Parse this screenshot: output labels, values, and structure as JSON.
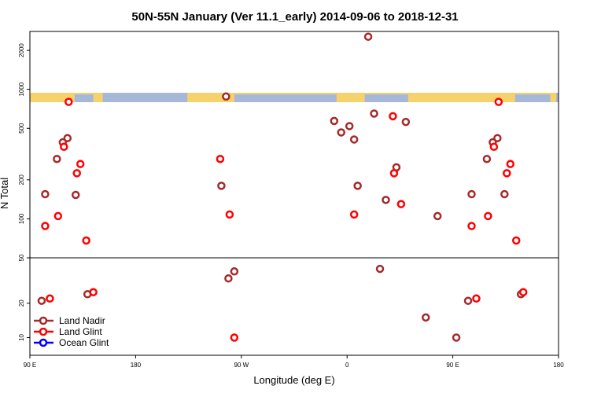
{
  "chart_data": {
    "type": "scatter",
    "title": "50N-55N January (Ver 11.1_early)   2014-09-06 to 2018-12-31",
    "xlabel": "Longitude (deg E)",
    "ylabel": "N Total",
    "x_ticks": [
      {
        "value": 90,
        "label": "90 E"
      },
      {
        "value": 180,
        "label": "180"
      },
      {
        "value": 270,
        "label": "90 W"
      },
      {
        "value": 360,
        "label": "0"
      },
      {
        "value": 450,
        "label": "90 E"
      },
      {
        "value": 540,
        "label": "180"
      }
    ],
    "xlim": [
      90,
      540
    ],
    "scale": "log",
    "upper_panel": {
      "ylim": [
        50,
        2800
      ],
      "y_ticks": [
        "50",
        "100",
        "200",
        "500",
        "1000",
        "2000"
      ]
    },
    "lower_panel": {
      "ylim": [
        7,
        50
      ],
      "y_ticks": [
        "10",
        "20",
        "50"
      ]
    },
    "map_strip": {
      "land_color": "#f6d26c",
      "ocean_color": "#a6b8d8"
    },
    "grid": false,
    "legend_position": "bottom-left",
    "series": [
      {
        "name": "Land Nadir",
        "color": "#a52a2a",
        "points": [
          [
            100,
            21
          ],
          [
            103,
            155
          ],
          [
            113,
            290
          ],
          [
            118,
            390
          ],
          [
            122,
            420
          ],
          [
            129,
            153
          ],
          [
            139,
            24
          ],
          [
            257,
            880
          ],
          [
            253,
            180
          ],
          [
            259,
            33
          ],
          [
            264,
            38
          ],
          [
            349,
            570
          ],
          [
            355,
            465
          ],
          [
            362,
            520
          ],
          [
            366,
            410
          ],
          [
            369,
            180
          ],
          [
            378,
            2550
          ],
          [
            383,
            650
          ],
          [
            388,
            40
          ],
          [
            393,
            140
          ],
          [
            402,
            250
          ],
          [
            410,
            560
          ],
          [
            427,
            15
          ],
          [
            437,
            105
          ],
          [
            453,
            10
          ],
          [
            463,
            21
          ],
          [
            466,
            155
          ],
          [
            479,
            290
          ],
          [
            484,
            390
          ],
          [
            488,
            420
          ],
          [
            494,
            155
          ],
          [
            508,
            24
          ]
        ]
      },
      {
        "name": "Land Glint",
        "color": "#ff0000",
        "points": [
          [
            103,
            88
          ],
          [
            107,
            22
          ],
          [
            114,
            105
          ],
          [
            119,
            360
          ],
          [
            123,
            800
          ],
          [
            130,
            225
          ],
          [
            133,
            265
          ],
          [
            138,
            68
          ],
          [
            144,
            25
          ],
          [
            252,
            290
          ],
          [
            260,
            108
          ],
          [
            264,
            10
          ],
          [
            366,
            108
          ],
          [
            399,
            620
          ],
          [
            400,
            225
          ],
          [
            406,
            130
          ],
          [
            466,
            88
          ],
          [
            470,
            22
          ],
          [
            480,
            105
          ],
          [
            485,
            360
          ],
          [
            489,
            800
          ],
          [
            496,
            225
          ],
          [
            499,
            265
          ],
          [
            504,
            68
          ],
          [
            510,
            25
          ]
        ]
      },
      {
        "name": "Ocean Glint",
        "color": "#0000ff",
        "points": []
      }
    ]
  }
}
